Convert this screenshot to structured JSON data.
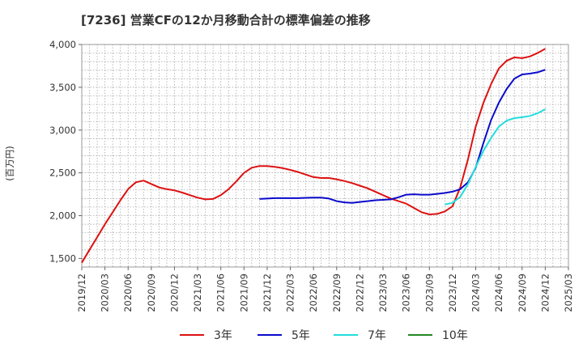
{
  "chart_data": {
    "type": "line",
    "title": "[7236]  営業CFの12か月移動合計の標準偏差の推移",
    "ylabel": "(百万円)",
    "xlabel": "",
    "ylim": [
      1400,
      4000
    ],
    "y_ticks": [
      "1,500",
      "2,000",
      "2,500",
      "3,000",
      "3,500",
      "4,000"
    ],
    "y_tick_values": [
      1500,
      2000,
      2500,
      3000,
      3500,
      4000
    ],
    "x_ticks": [
      "2019/12",
      "2020/03",
      "2020/06",
      "2020/09",
      "2020/12",
      "2021/03",
      "2021/06",
      "2021/09",
      "2021/12",
      "2022/03",
      "2022/06",
      "2022/09",
      "2022/12",
      "2023/03",
      "2023/06",
      "2023/09",
      "2023/12",
      "2024/03",
      "2024/06",
      "2024/09",
      "2024/12",
      "2025/03"
    ],
    "grid": true,
    "legend_position": "bottom",
    "series": [
      {
        "name": "3年",
        "color": "#dd1111",
        "x": [
          "2019/12",
          "2020/01",
          "2020/02",
          "2020/03",
          "2020/04",
          "2020/05",
          "2020/06",
          "2020/07",
          "2020/08",
          "2020/09",
          "2020/10",
          "2020/11",
          "2020/12",
          "2021/01",
          "2021/02",
          "2021/03",
          "2021/04",
          "2021/05",
          "2021/06",
          "2021/07",
          "2021/08",
          "2021/09",
          "2021/10",
          "2021/11",
          "2021/12",
          "2022/01",
          "2022/02",
          "2022/03",
          "2022/04",
          "2022/05",
          "2022/06",
          "2022/07",
          "2022/08",
          "2022/09",
          "2022/10",
          "2022/11",
          "2022/12",
          "2023/01",
          "2023/02",
          "2023/03",
          "2023/04",
          "2023/05",
          "2023/06",
          "2023/07",
          "2023/08",
          "2023/09",
          "2023/10",
          "2023/11",
          "2023/12",
          "2024/01",
          "2024/02",
          "2024/03",
          "2024/04",
          "2024/05",
          "2024/06",
          "2024/07",
          "2024/08",
          "2024/09",
          "2024/10",
          "2024/11",
          "2024/12"
        ],
        "values": [
          1450,
          1600,
          1750,
          1900,
          2040,
          2180,
          2310,
          2390,
          2410,
          2370,
          2330,
          2310,
          2295,
          2270,
          2240,
          2210,
          2190,
          2195,
          2240,
          2310,
          2400,
          2500,
          2560,
          2580,
          2580,
          2570,
          2555,
          2535,
          2510,
          2480,
          2450,
          2440,
          2440,
          2425,
          2405,
          2380,
          2350,
          2320,
          2280,
          2240,
          2200,
          2170,
          2140,
          2090,
          2040,
          2015,
          2020,
          2050,
          2110,
          2330,
          2660,
          3040,
          3320,
          3540,
          3720,
          3810,
          3850,
          3840,
          3860,
          3900,
          3950
        ]
      },
      {
        "name": "5年",
        "color": "#0a0acc",
        "x": [
          "2021/11",
          "2021/12",
          "2022/01",
          "2022/02",
          "2022/03",
          "2022/04",
          "2022/05",
          "2022/06",
          "2022/07",
          "2022/08",
          "2022/09",
          "2022/10",
          "2022/11",
          "2022/12",
          "2023/01",
          "2023/02",
          "2023/03",
          "2023/04",
          "2023/05",
          "2023/06",
          "2023/07",
          "2023/08",
          "2023/09",
          "2023/10",
          "2023/11",
          "2023/12",
          "2024/01",
          "2024/02",
          "2024/03",
          "2024/04",
          "2024/05",
          "2024/06",
          "2024/07",
          "2024/08",
          "2024/09",
          "2024/10",
          "2024/11",
          "2024/12"
        ],
        "values": [
          2195,
          2200,
          2205,
          2205,
          2205,
          2205,
          2208,
          2210,
          2210,
          2200,
          2170,
          2155,
          2150,
          2160,
          2170,
          2180,
          2185,
          2190,
          2215,
          2245,
          2250,
          2245,
          2245,
          2255,
          2265,
          2280,
          2310,
          2390,
          2560,
          2850,
          3120,
          3320,
          3480,
          3600,
          3650,
          3660,
          3675,
          3705
        ]
      },
      {
        "name": "7年",
        "color": "#22dddd",
        "x": [
          "2023/11",
          "2023/12",
          "2024/01",
          "2024/02",
          "2024/03",
          "2024/04",
          "2024/05",
          "2024/06",
          "2024/07",
          "2024/08",
          "2024/09",
          "2024/10",
          "2024/11",
          "2024/12"
        ],
        "values": [
          2130,
          2150,
          2220,
          2370,
          2570,
          2760,
          2910,
          3040,
          3110,
          3140,
          3150,
          3165,
          3195,
          3245
        ]
      },
      {
        "name": "10年",
        "color": "#228822",
        "x": [],
        "values": []
      }
    ]
  }
}
